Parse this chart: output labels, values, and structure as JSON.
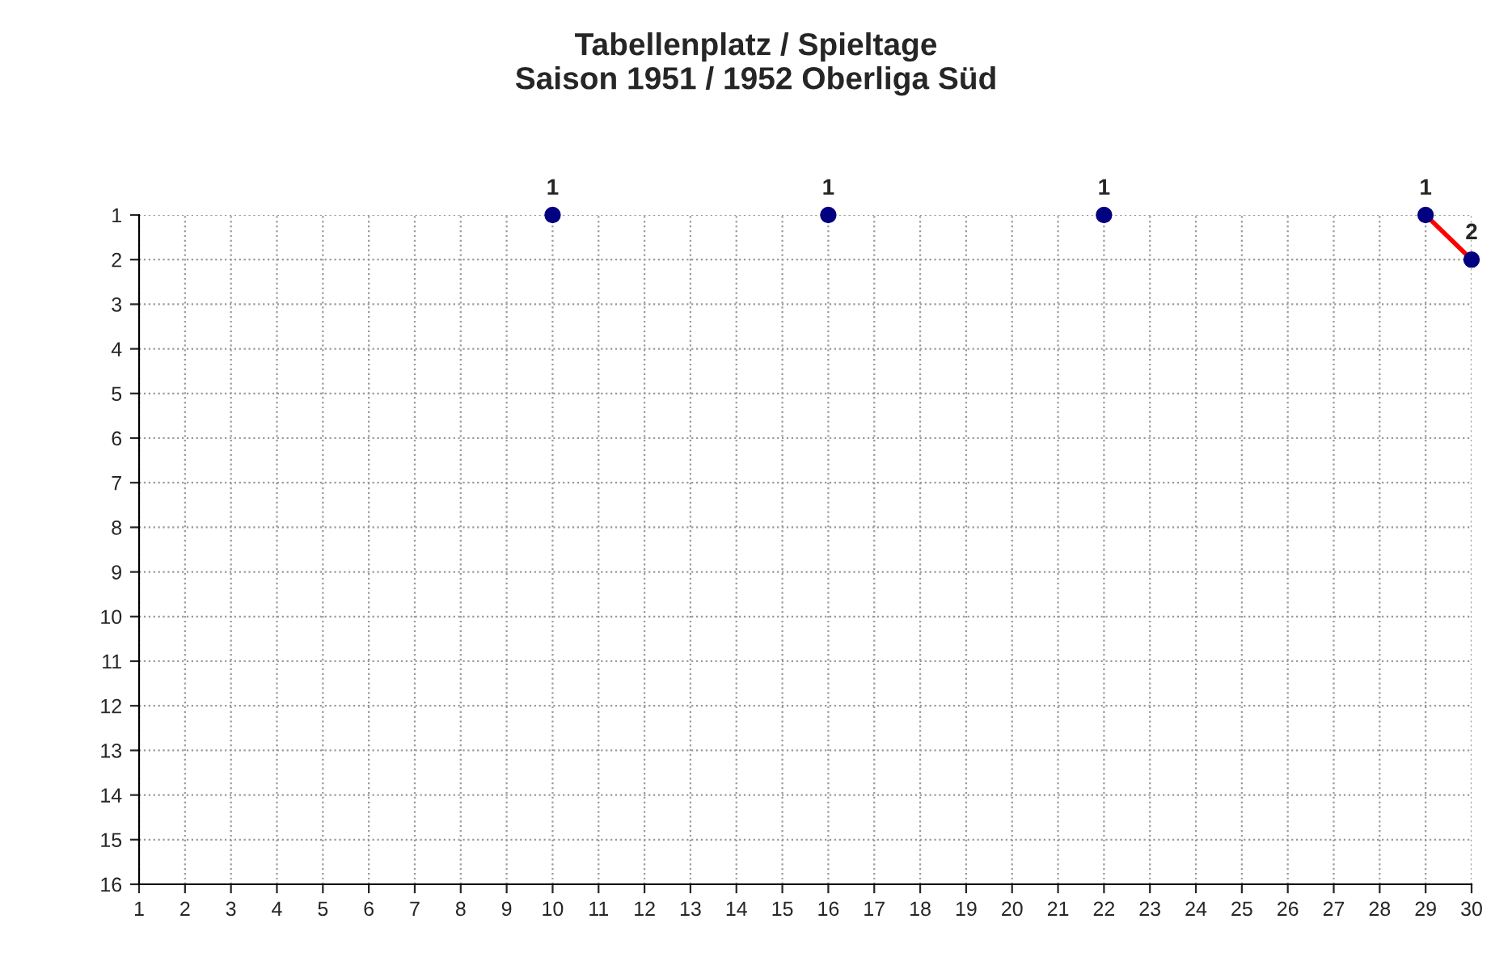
{
  "chart_data": {
    "type": "line",
    "title": "Tabellenplatz / Spieltage\nSaison 1951 / 1952 Oberliga Süd",
    "categories": [
      "1",
      "2",
      "3",
      "4",
      "5",
      "6",
      "7",
      "8",
      "9",
      "10",
      "11",
      "12",
      "13",
      "14",
      "15",
      "16",
      "17",
      "18",
      "19",
      "20",
      "21",
      "22",
      "23",
      "24",
      "25",
      "26",
      "27",
      "28",
      "29",
      "30"
    ],
    "series": [
      {
        "color": "#ff0000",
        "colors": [
          "#000080",
          "#000080",
          "#000080",
          "#000080",
          "#000080",
          "#000080",
          "#000080",
          "#000080",
          "#000080",
          "#000080",
          "#000080",
          "#000080",
          "#000080",
          "#000080",
          "#000080",
          "#000080",
          "#000080",
          "#000080",
          "#000080",
          "#000080",
          "#000080",
          "#000080",
          "#000080",
          "#000080",
          "#000080",
          "#000080",
          "#000080",
          "#000080",
          "#000080",
          "#000080"
        ],
        "values": [
          null,
          null,
          null,
          null,
          null,
          null,
          null,
          null,
          null,
          1,
          null,
          null,
          null,
          null,
          null,
          1,
          null,
          null,
          null,
          null,
          null,
          1,
          null,
          null,
          null,
          null,
          null,
          null,
          1,
          2
        ]
      }
    ],
    "ylim": [
      16,
      1
    ],
    "yticks": [
      1,
      2,
      3,
      4,
      5,
      6,
      7,
      8,
      9,
      10,
      11,
      12,
      13,
      14,
      15,
      16
    ],
    "grid": true,
    "marker": "circle",
    "line_style": "solid",
    "data_labels": true
  }
}
